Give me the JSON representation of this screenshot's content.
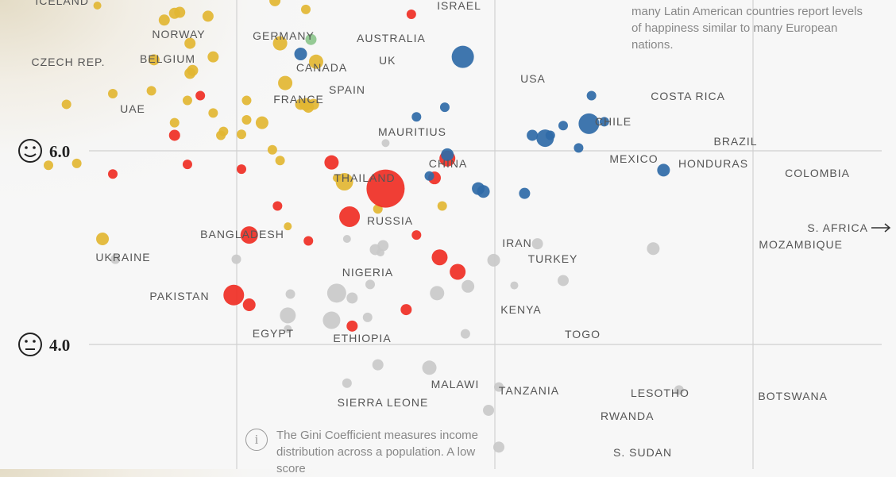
{
  "chart_data": {
    "type": "scatter",
    "title": "",
    "y_ticks": [
      {
        "value": 6.0,
        "label": "6.0",
        "icon": "smiley-face-icon"
      },
      {
        "value": 4.0,
        "label": "4.0",
        "icon": "neutral-face-icon"
      }
    ],
    "group_colors": {
      "europe": "#e2b632",
      "asia": "#ef2e24",
      "americas": "#2f6aa7",
      "oceania": "#8cc68c",
      "africa": "#c9c9c9"
    },
    "series": [
      {
        "name": "Iceland",
        "label": "ICELAND",
        "gini": 0.194,
        "happiness": 7.5,
        "size": 5,
        "group": "europe"
      },
      {
        "name": "Norway",
        "label": "NORWAY",
        "gini": 0.22,
        "happiness": 7.35,
        "size": 7,
        "group": "europe"
      },
      {
        "name": "Czech Rep.",
        "label": "CZECH REP.",
        "gini": 0.216,
        "happiness": 6.94,
        "size": 7,
        "group": "europe"
      },
      {
        "name": "Belgium",
        "label": "BELGIUM",
        "gini": 0.23,
        "happiness": 6.8,
        "size": 7,
        "group": "europe"
      },
      {
        "name": "UAE",
        "label": "UAE",
        "gini": 0.234,
        "happiness": 6.57,
        "size": 6,
        "group": "asia"
      },
      {
        "name": "Germany",
        "label": "GERMANY",
        "gini": 0.265,
        "happiness": 7.11,
        "size": 9,
        "group": "europe"
      },
      {
        "name": "Canada",
        "label": "CANADA",
        "gini": 0.273,
        "happiness": 7.0,
        "size": 8,
        "group": "americas"
      },
      {
        "name": "Australia",
        "label": "AUSTRALIA",
        "gini": 0.277,
        "happiness": 7.15,
        "size": 7,
        "group": "oceania"
      },
      {
        "name": "UK",
        "label": "UK",
        "gini": 0.279,
        "happiness": 6.92,
        "size": 9,
        "group": "europe"
      },
      {
        "name": "France",
        "label": "FRANCE",
        "gini": 0.267,
        "happiness": 6.7,
        "size": 9,
        "group": "europe"
      },
      {
        "name": "Spain",
        "label": "SPAIN",
        "gini": 0.275,
        "happiness": 6.48,
        "size": 8,
        "group": "europe"
      },
      {
        "name": "Israel",
        "label": "ISRAEL",
        "gini": 0.316,
        "happiness": 7.41,
        "size": 6,
        "group": "asia"
      },
      {
        "name": "USA",
        "label": "USA",
        "gini": 0.336,
        "happiness": 6.97,
        "size": 14,
        "group": "americas"
      },
      {
        "name": "Mauritius",
        "label": "MAURITIUS",
        "gini": 0.306,
        "happiness": 6.08,
        "size": 5,
        "group": "africa"
      },
      {
        "name": "Thailand",
        "label": "THAILAND",
        "gini": 0.285,
        "happiness": 5.88,
        "size": 9,
        "group": "asia"
      },
      {
        "name": "China",
        "label": "CHINA",
        "gini": 0.306,
        "happiness": 5.61,
        "size": 24,
        "group": "asia"
      },
      {
        "name": "Russia",
        "label": "RUSSIA",
        "gini": 0.292,
        "happiness": 5.32,
        "size": 13,
        "group": "asia"
      },
      {
        "name": "Bangladesh",
        "label": "BANGLADESH",
        "gini": 0.253,
        "happiness": 5.13,
        "size": 11,
        "group": "asia"
      },
      {
        "name": "Ukraine",
        "label": "UKRAINE",
        "gini": 0.196,
        "happiness": 5.09,
        "size": 8,
        "group": "europe"
      },
      {
        "name": "Pakistan",
        "label": "PAKISTAN",
        "gini": 0.247,
        "happiness": 4.51,
        "size": 13,
        "group": "asia"
      },
      {
        "name": "Egypt",
        "label": "EGYPT",
        "gini": 0.268,
        "happiness": 4.3,
        "size": 10,
        "group": "africa"
      },
      {
        "name": "Ethiopia",
        "label": "ETHIOPIA",
        "gini": 0.285,
        "happiness": 4.25,
        "size": 11,
        "group": "africa"
      },
      {
        "name": "Nigeria",
        "label": "NIGERIA",
        "gini": 0.287,
        "happiness": 4.53,
        "size": 12,
        "group": "africa"
      },
      {
        "name": "Iran",
        "label": "IRAN",
        "gini": 0.327,
        "happiness": 4.9,
        "size": 10,
        "group": "asia"
      },
      {
        "name": "Turkey",
        "label": "TURKEY",
        "gini": 0.334,
        "happiness": 4.75,
        "size": 10,
        "group": "asia"
      },
      {
        "name": "Kenya",
        "label": "KENYA",
        "gini": 0.326,
        "happiness": 4.53,
        "size": 9,
        "group": "africa"
      },
      {
        "name": "Togo",
        "label": "TOGO",
        "gini": 0.337,
        "happiness": 4.11,
        "size": 6,
        "group": "africa"
      },
      {
        "name": "Chile",
        "label": "CHILE",
        "gini": 0.363,
        "happiness": 6.16,
        "size": 7,
        "group": "americas"
      },
      {
        "name": "Mexico",
        "label": "MEXICO",
        "gini": 0.368,
        "happiness": 6.13,
        "size": 11,
        "group": "americas"
      },
      {
        "name": "Costa Rica",
        "label": "COSTA RICA",
        "gini": 0.386,
        "happiness": 6.57,
        "size": 6,
        "group": "americas"
      },
      {
        "name": "Brazil",
        "label": "BRAZIL",
        "gini": 0.385,
        "happiness": 6.28,
        "size": 13,
        "group": "americas"
      },
      {
        "name": "Honduras",
        "label": "HONDURAS",
        "gini": 0.381,
        "happiness": 6.03,
        "size": 6,
        "group": "americas"
      },
      {
        "name": "Colombia",
        "label": "COLOMBIA",
        "gini": 0.414,
        "happiness": 5.8,
        "size": 8,
        "group": "americas"
      },
      {
        "name": "S. Africa",
        "label": "S. AFRICA",
        "gini": 0.5,
        "happiness": 5.12,
        "size": 0,
        "group": "africa",
        "offchart": true
      },
      {
        "name": "Mozambique",
        "label": "MOZAMBIQUE",
        "gini": 0.41,
        "happiness": 4.99,
        "size": 8,
        "group": "africa"
      },
      {
        "name": "Malawi",
        "label": "MALAWI",
        "gini": 0.303,
        "happiness": 3.79,
        "size": 7,
        "group": "africa"
      },
      {
        "name": "Tanzania",
        "label": "TANZANIA",
        "gini": 0.323,
        "happiness": 3.76,
        "size": 9,
        "group": "africa"
      },
      {
        "name": "Sierra Leone",
        "label": "SIERRA LEONE",
        "gini": 0.291,
        "happiness": 3.6,
        "size": 6,
        "group": "africa"
      },
      {
        "name": "Lesotho",
        "label": "LESOTHO",
        "gini": 0.35,
        "happiness": 3.56,
        "size": 6,
        "group": "africa"
      },
      {
        "name": "Rwanda",
        "label": "RWANDA",
        "gini": 0.346,
        "happiness": 3.32,
        "size": 7,
        "group": "africa"
      },
      {
        "name": "S. Sudan",
        "label": "S. SUDAN",
        "gini": 0.35,
        "happiness": 2.94,
        "size": 7,
        "group": "africa"
      },
      {
        "name": "Botswana",
        "label": "BOTSWANA",
        "gini": 0.42,
        "happiness": 3.53,
        "size": 6,
        "group": "africa"
      }
    ],
    "unlabeled_points": [
      {
        "gini": 0.214,
        "happiness": 7.65,
        "size": 5,
        "group": "europe"
      },
      {
        "gini": 0.226,
        "happiness": 7.43,
        "size": 7,
        "group": "europe"
      },
      {
        "gini": 0.237,
        "happiness": 7.39,
        "size": 7,
        "group": "europe"
      },
      {
        "gini": 0.224,
        "happiness": 7.42,
        "size": 7,
        "group": "europe"
      },
      {
        "gini": 0.263,
        "happiness": 7.55,
        "size": 7,
        "group": "europe"
      },
      {
        "gini": 0.275,
        "happiness": 7.46,
        "size": 6,
        "group": "europe"
      },
      {
        "gini": 0.23,
        "happiness": 7.11,
        "size": 7,
        "group": "europe"
      },
      {
        "gini": 0.239,
        "happiness": 6.97,
        "size": 7,
        "group": "europe"
      },
      {
        "gini": 0.231,
        "happiness": 6.83,
        "size": 7,
        "group": "europe"
      },
      {
        "gini": 0.2,
        "happiness": 6.59,
        "size": 6,
        "group": "europe"
      },
      {
        "gini": 0.182,
        "happiness": 6.48,
        "size": 6,
        "group": "europe"
      },
      {
        "gini": 0.215,
        "happiness": 6.62,
        "size": 6,
        "group": "europe"
      },
      {
        "gini": 0.224,
        "happiness": 6.29,
        "size": 6,
        "group": "europe"
      },
      {
        "gini": 0.229,
        "happiness": 6.52,
        "size": 6,
        "group": "europe"
      },
      {
        "gini": 0.239,
        "happiness": 6.39,
        "size": 6,
        "group": "europe"
      },
      {
        "gini": 0.252,
        "happiness": 6.52,
        "size": 6,
        "group": "europe"
      },
      {
        "gini": 0.252,
        "happiness": 6.32,
        "size": 6,
        "group": "europe"
      },
      {
        "gini": 0.258,
        "happiness": 6.29,
        "size": 8,
        "group": "europe"
      },
      {
        "gini": 0.243,
        "happiness": 6.2,
        "size": 6,
        "group": "europe"
      },
      {
        "gini": 0.25,
        "happiness": 6.17,
        "size": 6,
        "group": "europe"
      },
      {
        "gini": 0.242,
        "happiness": 6.16,
        "size": 6,
        "group": "europe"
      },
      {
        "gini": 0.273,
        "happiness": 6.48,
        "size": 7,
        "group": "europe"
      },
      {
        "gini": 0.278,
        "happiness": 6.48,
        "size": 7,
        "group": "europe"
      },
      {
        "gini": 0.276,
        "happiness": 6.45,
        "size": 7,
        "group": "europe"
      },
      {
        "gini": 0.262,
        "happiness": 6.01,
        "size": 6,
        "group": "europe"
      },
      {
        "gini": 0.265,
        "happiness": 5.9,
        "size": 6,
        "group": "europe"
      },
      {
        "gini": 0.287,
        "happiness": 5.72,
        "size": 5,
        "group": "europe"
      },
      {
        "gini": 0.303,
        "happiness": 5.4,
        "size": 6,
        "group": "europe"
      },
      {
        "gini": 0.268,
        "happiness": 5.22,
        "size": 5,
        "group": "europe"
      },
      {
        "gini": 0.175,
        "happiness": 5.85,
        "size": 6,
        "group": "europe"
      },
      {
        "gini": 0.186,
        "happiness": 5.87,
        "size": 6,
        "group": "europe"
      },
      {
        "gini": 0.29,
        "happiness": 5.68,
        "size": 11,
        "group": "europe"
      },
      {
        "gini": 0.2,
        "happiness": 5.76,
        "size": 6,
        "group": "asia"
      },
      {
        "gini": 0.224,
        "happiness": 6.16,
        "size": 7,
        "group": "asia"
      },
      {
        "gini": 0.229,
        "happiness": 5.86,
        "size": 6,
        "group": "asia"
      },
      {
        "gini": 0.25,
        "happiness": 5.81,
        "size": 6,
        "group": "asia"
      },
      {
        "gini": 0.264,
        "happiness": 5.43,
        "size": 6,
        "group": "asia"
      },
      {
        "gini": 0.276,
        "happiness": 5.07,
        "size": 6,
        "group": "asia"
      },
      {
        "gini": 0.318,
        "happiness": 5.13,
        "size": 6,
        "group": "asia"
      },
      {
        "gini": 0.33,
        "happiness": 5.92,
        "size": 10,
        "group": "asia"
      },
      {
        "gini": 0.325,
        "happiness": 5.72,
        "size": 8,
        "group": "asia"
      },
      {
        "gini": 0.253,
        "happiness": 4.41,
        "size": 8,
        "group": "asia"
      },
      {
        "gini": 0.293,
        "happiness": 4.19,
        "size": 7,
        "group": "asia"
      },
      {
        "gini": 0.314,
        "happiness": 4.36,
        "size": 7,
        "group": "asia"
      },
      {
        "gini": 0.318,
        "happiness": 6.35,
        "size": 6,
        "group": "americas"
      },
      {
        "gini": 0.323,
        "happiness": 5.74,
        "size": 6,
        "group": "americas"
      },
      {
        "gini": 0.329,
        "happiness": 6.45,
        "size": 6,
        "group": "americas"
      },
      {
        "gini": 0.33,
        "happiness": 5.96,
        "size": 8,
        "group": "americas"
      },
      {
        "gini": 0.342,
        "happiness": 5.61,
        "size": 8,
        "group": "americas"
      },
      {
        "gini": 0.344,
        "happiness": 5.58,
        "size": 8,
        "group": "americas"
      },
      {
        "gini": 0.36,
        "happiness": 5.56,
        "size": 7,
        "group": "americas"
      },
      {
        "gini": 0.37,
        "happiness": 6.16,
        "size": 6,
        "group": "americas"
      },
      {
        "gini": 0.375,
        "happiness": 6.26,
        "size": 6,
        "group": "americas"
      },
      {
        "gini": 0.391,
        "happiness": 6.3,
        "size": 6,
        "group": "americas"
      },
      {
        "gini": 0.328,
        "happiness": 5.43,
        "size": 6,
        "group": "europe"
      },
      {
        "gini": 0.248,
        "happiness": 4.88,
        "size": 6,
        "group": "africa"
      },
      {
        "gini": 0.269,
        "happiness": 4.52,
        "size": 6,
        "group": "africa"
      },
      {
        "gini": 0.268,
        "happiness": 4.16,
        "size": 5,
        "group": "africa"
      },
      {
        "gini": 0.291,
        "happiness": 5.09,
        "size": 5,
        "group": "africa"
      },
      {
        "gini": 0.293,
        "happiness": 4.48,
        "size": 7,
        "group": "africa"
      },
      {
        "gini": 0.302,
        "happiness": 4.98,
        "size": 7,
        "group": "africa"
      },
      {
        "gini": 0.305,
        "happiness": 5.02,
        "size": 7,
        "group": "africa"
      },
      {
        "gini": 0.304,
        "happiness": 4.95,
        "size": 5,
        "group": "africa"
      },
      {
        "gini": 0.3,
        "happiness": 4.62,
        "size": 6,
        "group": "africa"
      },
      {
        "gini": 0.299,
        "happiness": 4.28,
        "size": 6,
        "group": "africa"
      },
      {
        "gini": 0.338,
        "happiness": 4.6,
        "size": 8,
        "group": "africa"
      },
      {
        "gini": 0.348,
        "happiness": 4.87,
        "size": 8,
        "group": "africa"
      },
      {
        "gini": 0.356,
        "happiness": 4.61,
        "size": 5,
        "group": "africa"
      },
      {
        "gini": 0.365,
        "happiness": 5.04,
        "size": 7,
        "group": "africa"
      },
      {
        "gini": 0.375,
        "happiness": 4.66,
        "size": 7,
        "group": "africa"
      },
      {
        "gini": 0.201,
        "happiness": 4.88,
        "size": 6,
        "group": "africa"
      }
    ]
  },
  "notes": {
    "top_text": "many Latin American countries report levels of happiness similar to many European nations.",
    "gini_text": "The Gini Coefficient measures income distribution across a population. A low score",
    "info_icon_glyph": "i"
  }
}
